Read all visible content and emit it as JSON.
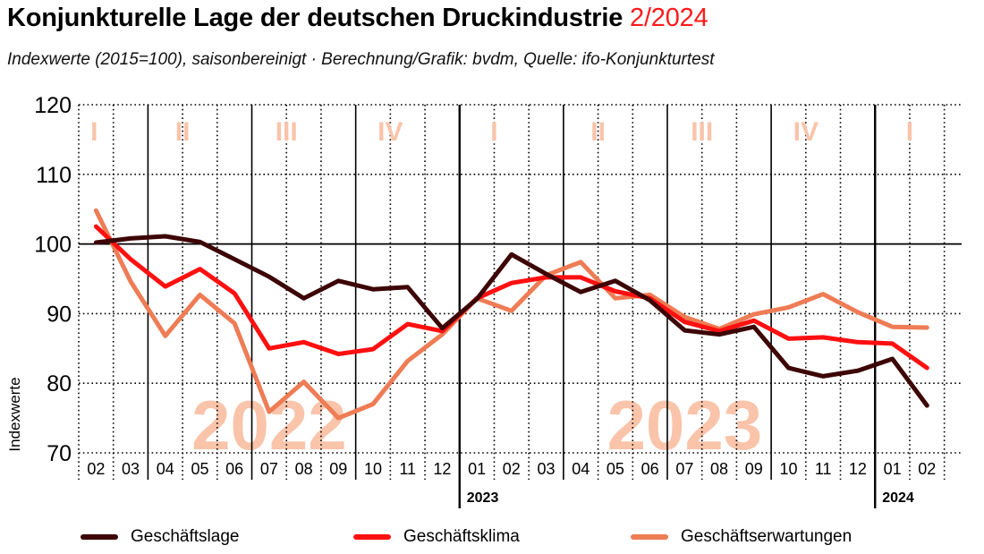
{
  "header": {
    "title": "Konjunkturelle Lage der deutschen Druckindustrie",
    "title_accent": "2/2024",
    "subtitle": "Indexwerte (2015=100), saisonbereinigt · Berechnung/Grafik: bvdm, Quelle: ifo-Konjunkturtest"
  },
  "colors": {
    "accent": "#ff1a1a",
    "geschaeftslage": "#3d0505",
    "geschaeftsklima": "#ff1010",
    "geschaeftserwartungen": "#ee7c55",
    "watermark": "#f9c4aa"
  },
  "chart_data": {
    "type": "line",
    "title": "Konjunkturelle Lage der deutschen Druckindustrie 2/2024",
    "xlabel": "",
    "ylabel": "Indexwerte",
    "ylim": [
      70,
      120
    ],
    "yticks": [
      70,
      80,
      90,
      100,
      110,
      120
    ],
    "reference_line": 100,
    "grid": true,
    "legend_position": "bottom",
    "x": [
      "02",
      "03",
      "04",
      "05",
      "06",
      "07",
      "08",
      "09",
      "10",
      "11",
      "12",
      "01",
      "02",
      "03",
      "04",
      "05",
      "06",
      "07",
      "08",
      "09",
      "10",
      "11",
      "12",
      "01",
      "02"
    ],
    "year_markers": [
      {
        "label": "2023",
        "index": 11
      },
      {
        "label": "2024",
        "index": 23
      }
    ],
    "quarter_labels": [
      {
        "label": "I",
        "center": 0.5
      },
      {
        "label": "II",
        "center": 3.0
      },
      {
        "label": "III",
        "center": 6.0
      },
      {
        "label": "IV",
        "center": 9.0
      },
      {
        "label": "I",
        "center": 12.0
      },
      {
        "label": "II",
        "center": 15.0
      },
      {
        "label": "III",
        "center": 18.0
      },
      {
        "label": "IV",
        "center": 21.0
      },
      {
        "label": "I",
        "center": 24.0
      }
    ],
    "watermarks": [
      {
        "label": "2022",
        "center": 5.0
      },
      {
        "label": "2023",
        "center": 17.0
      }
    ],
    "series": [
      {
        "name": "Geschäftslage",
        "key": "geschaeftslage",
        "values": [
          100.2,
          100.8,
          101.1,
          100.3,
          97.8,
          95.3,
          92.2,
          94.7,
          93.5,
          93.8,
          87.9,
          92.1,
          98.5,
          95.7,
          93.1,
          94.7,
          91.9,
          87.6,
          87.0,
          88.1,
          82.2,
          81.0,
          81.8,
          83.5,
          76.8
        ]
      },
      {
        "name": "Geschäftsklima",
        "key": "geschaeftsklima",
        "values": [
          102.5,
          97.8,
          93.9,
          96.4,
          92.9,
          85.0,
          85.9,
          84.2,
          84.9,
          88.5,
          87.5,
          92.2,
          94.4,
          95.2,
          95.2,
          93.2,
          92.2,
          88.8,
          87.5,
          89.0,
          86.4,
          86.6,
          85.9,
          85.7,
          82.2
        ]
      },
      {
        "name": "Geschäftserwartungen",
        "key": "geschaeftserwartungen",
        "values": [
          104.8,
          94.6,
          86.8,
          92.7,
          88.6,
          75.9,
          80.2,
          75.0,
          77.0,
          83.2,
          87.0,
          92.2,
          90.4,
          95.5,
          97.4,
          92.2,
          92.7,
          89.5,
          87.8,
          89.9,
          90.9,
          92.8,
          90.2,
          88.1,
          88.0
        ]
      }
    ]
  },
  "legend": {
    "items": [
      {
        "label": "Geschäftslage"
      },
      {
        "label": "Geschäftsklima"
      },
      {
        "label": "Geschäftserwartungen"
      }
    ]
  }
}
